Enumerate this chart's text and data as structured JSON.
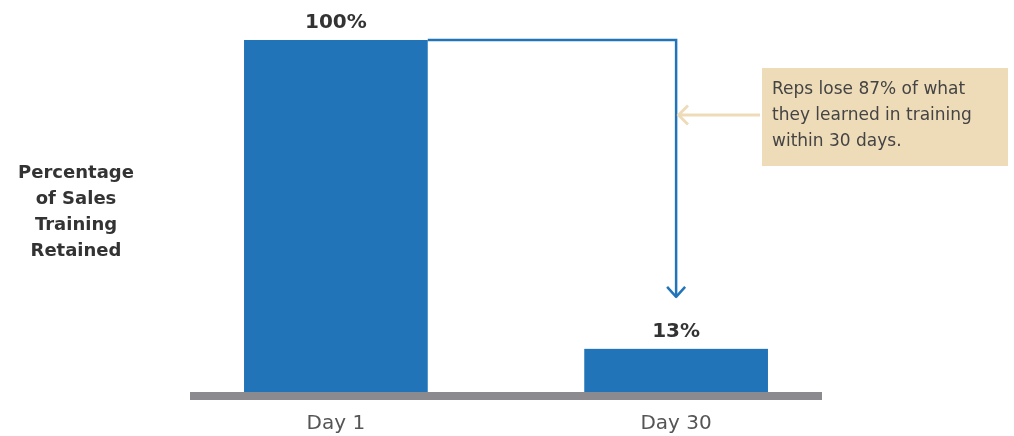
{
  "chart_data": {
    "type": "bar",
    "ylabel": "Percentage of Sales Training Retained",
    "categories": [
      "Day 1",
      "Day 30"
    ],
    "values": [
      100,
      13
    ],
    "value_labels": [
      "100%",
      "13%"
    ],
    "color": "#2274b8",
    "annotations": [
      "Reps lose 87% of what they learned in training within 30 days."
    ]
  }
}
